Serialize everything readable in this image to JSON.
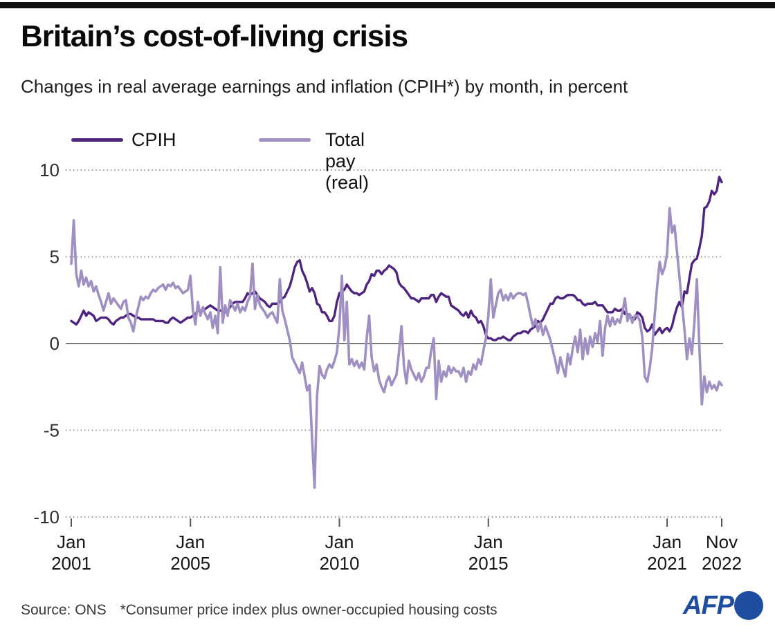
{
  "header": {
    "title": "Britain’s cost-of-living crisis",
    "subtitle": "Changes in real average earnings and inflation (CPIH*) by month, in percent"
  },
  "legend": {
    "items": [
      {
        "label": "CPIH",
        "color": "#4e2480"
      },
      {
        "label": "Total pay (real)",
        "color": "#a08fc2"
      }
    ]
  },
  "footer": {
    "source": "Source: ONS",
    "note": "*Consumer price index plus owner-occupied housing costs",
    "logo": "AFP",
    "logo_color": "#1f4ea1"
  },
  "chart_data": {
    "type": "line",
    "title": "Changes in real average earnings and inflation (CPIH) by month, in percent",
    "x_start": "2001-01",
    "x_end": "2022-11",
    "frequency": "monthly",
    "ylim": [
      -10,
      10
    ],
    "yticks": [
      10,
      5,
      0,
      -5,
      -10
    ],
    "grid": "horizontal-dotted, solid zero line",
    "legend_position": "top",
    "xticks": [
      {
        "month": "Jan",
        "year": "2001",
        "index": 0
      },
      {
        "month": "Jan",
        "year": "2005",
        "index": 48
      },
      {
        "month": "Jan",
        "year": "2010",
        "index": 108
      },
      {
        "month": "Jan",
        "year": "2015",
        "index": 168
      },
      {
        "month": "Jan",
        "year": "2021",
        "index": 240
      },
      {
        "month": "Nov",
        "year": "2022",
        "index": 262
      }
    ],
    "series": [
      {
        "name": "CPIH",
        "color": "#4e2480",
        "values": [
          1.3,
          1.2,
          1.1,
          1.3,
          1.6,
          1.9,
          1.6,
          1.8,
          1.7,
          1.6,
          1.3,
          1.4,
          1.5,
          1.5,
          1.5,
          1.4,
          1.2,
          1.1,
          1.3,
          1.4,
          1.5,
          1.5,
          1.6,
          1.7,
          1.7,
          1.6,
          1.5,
          1.5,
          1.4,
          1.4,
          1.4,
          1.4,
          1.4,
          1.4,
          1.3,
          1.3,
          1.3,
          1.3,
          1.2,
          1.2,
          1.4,
          1.5,
          1.4,
          1.3,
          1.2,
          1.3,
          1.4,
          1.5,
          1.5,
          1.6,
          1.7,
          1.9,
          1.9,
          1.9,
          2.0,
          2.1,
          2.2,
          2.1,
          2.0,
          1.9,
          1.9,
          1.9,
          1.8,
          1.9,
          2.1,
          2.3,
          2.4,
          2.4,
          2.4,
          2.4,
          2.6,
          2.9,
          2.8,
          2.9,
          3.0,
          2.8,
          2.6,
          2.5,
          2.4,
          2.2,
          2.1,
          2.3,
          2.3,
          2.3,
          2.4,
          2.6,
          2.7,
          3.0,
          3.3,
          3.8,
          4.4,
          4.7,
          4.8,
          4.2,
          3.9,
          3.5,
          3.0,
          3.2,
          2.9,
          2.3,
          2.2,
          1.8,
          1.8,
          1.6,
          1.3,
          1.3,
          1.6,
          2.4,
          2.9,
          3.0,
          3.1,
          3.4,
          3.2,
          3.0,
          2.9,
          2.9,
          2.8,
          2.9,
          3.0,
          3.4,
          3.6,
          4.0,
          3.9,
          4.2,
          4.2,
          4.0,
          4.2,
          4.3,
          4.5,
          4.4,
          4.3,
          4.1,
          3.5,
          3.3,
          3.2,
          3.0,
          2.8,
          2.6,
          2.6,
          2.5,
          2.4,
          2.6,
          2.6,
          2.6,
          2.6,
          2.8,
          2.8,
          2.4,
          2.7,
          2.9,
          2.8,
          2.7,
          2.7,
          2.2,
          2.1,
          2.0,
          1.9,
          1.7,
          1.6,
          1.8,
          1.5,
          1.9,
          1.6,
          1.5,
          1.2,
          1.3,
          1.0,
          0.5,
          0.3,
          0.3,
          0.2,
          0.2,
          0.3,
          0.3,
          0.4,
          0.3,
          0.2,
          0.2,
          0.4,
          0.5,
          0.6,
          0.6,
          0.7,
          0.7,
          0.6,
          0.8,
          0.9,
          1.0,
          1.3,
          1.2,
          1.4,
          1.7,
          2.0,
          2.3,
          2.3,
          2.6,
          2.7,
          2.6,
          2.6,
          2.7,
          2.8,
          2.8,
          2.8,
          2.7,
          2.5,
          2.5,
          2.3,
          2.2,
          2.3,
          2.3,
          2.3,
          2.4,
          2.2,
          2.2,
          2.2,
          2.0,
          1.8,
          1.8,
          1.8,
          2.0,
          1.9,
          1.9,
          2.0,
          1.7,
          1.7,
          1.5,
          1.5,
          1.4,
          1.8,
          1.7,
          1.5,
          0.9,
          0.7,
          0.8,
          1.1,
          0.5,
          0.7,
          0.9,
          0.6,
          0.8,
          0.9,
          0.7,
          1.0,
          1.6,
          2.1,
          2.4,
          2.1,
          3.0,
          2.9,
          3.8,
          4.6,
          4.8,
          4.9,
          5.5,
          6.2,
          7.8,
          7.9,
          8.2,
          8.8,
          8.6,
          8.8,
          9.6,
          9.3
        ]
      },
      {
        "name": "Total pay (real)",
        "color": "#a08fc2",
        "values": [
          4.6,
          7.1,
          4.0,
          3.3,
          4.2,
          3.4,
          3.8,
          3.3,
          3.6,
          3.0,
          3.3,
          2.8,
          2.4,
          1.9,
          2.4,
          2.9,
          2.3,
          2.6,
          2.4,
          2.2,
          2.0,
          2.4,
          2.5,
          1.5,
          1.2,
          0.7,
          1.5,
          2.1,
          2.7,
          2.5,
          2.7,
          2.6,
          2.9,
          3.1,
          3.0,
          3.2,
          3.3,
          3.4,
          3.1,
          3.4,
          3.3,
          3.5,
          3.2,
          3.3,
          3.1,
          2.9,
          3.0,
          3.1,
          3.9,
          1.9,
          1.1,
          2.4,
          1.6,
          2.1,
          1.7,
          1.4,
          1.8,
          0.9,
          1.6,
          0.6,
          4.4,
          1.2,
          2.2,
          1.6,
          2.5,
          2.2,
          1.9,
          2.3,
          1.8,
          2.1,
          1.9,
          2.4,
          2.7,
          4.6,
          2.0,
          2.8,
          2.2,
          2.0,
          1.8,
          1.5,
          1.7,
          1.8,
          1.5,
          1.2,
          3.7,
          1.9,
          1.4,
          0.8,
          0.2,
          -0.8,
          -1.1,
          -1.4,
          -1.7,
          -1.1,
          -1.9,
          -2.7,
          -2.4,
          -5.5,
          -8.3,
          -3.0,
          -1.3,
          -1.8,
          -2.0,
          -1.5,
          -1.2,
          -1.4,
          -1.0,
          -0.5,
          1.0,
          3.9,
          0.2,
          2.4,
          -1.2,
          -0.9,
          -1.3,
          -1.0,
          -1.4,
          -1.1,
          -1.5,
          0.3,
          1.6,
          -0.8,
          -1.6,
          -1.2,
          -2.1,
          -2.5,
          -2.8,
          -2.2,
          -1.9,
          -2.4,
          -2.1,
          -1.8,
          -0.5,
          1.0,
          -1.3,
          -2.3,
          -1.0,
          -1.5,
          -1.8,
          -2.1,
          -1.7,
          -2.2,
          -1.9,
          -1.4,
          -1.4,
          -0.4,
          0.3,
          -3.2,
          -1.0,
          -2.2,
          -1.6,
          -1.9,
          -1.3,
          -1.7,
          -1.4,
          -1.6,
          -1.6,
          -1.9,
          -1.4,
          -2.2,
          -1.6,
          -1.8,
          -1.2,
          -1.5,
          -0.9,
          -1.2,
          -0.4,
          0.3,
          1.6,
          3.7,
          1.5,
          2.2,
          2.9,
          3.1,
          2.5,
          2.8,
          2.5,
          2.9,
          2.6,
          2.8,
          2.9,
          2.9,
          2.8,
          2.9,
          2.3,
          1.6,
          1.0,
          1.4,
          0.7,
          1.2,
          0.5,
          1.0,
          0.6,
          0.2,
          -0.4,
          -1.0,
          -1.7,
          -0.8,
          -1.4,
          -1.9,
          -0.6,
          -1.2,
          -0.3,
          0.4,
          -0.5,
          0.8,
          -0.9,
          0.3,
          -0.6,
          0.4,
          -0.2,
          0.6,
          0.1,
          1.3,
          -0.7,
          0.9,
          1.6,
          1.0,
          1.5,
          1.1,
          1.4,
          1.2,
          1.8,
          2.6,
          1.3,
          1.7,
          1.2,
          1.6,
          1.6,
          1.3,
          0.4,
          -1.9,
          -2.2,
          -1.4,
          -0.3,
          1.6,
          3.3,
          4.7,
          4.0,
          4.4,
          5.2,
          7.8,
          6.4,
          6.8,
          5.3,
          3.8,
          2.3,
          0.8,
          -0.9,
          0.3,
          -0.6,
          1.2,
          3.7,
          -0.2,
          -3.5,
          -1.9,
          -2.8,
          -2.2,
          -2.6,
          -2.4,
          -2.7,
          -2.2,
          -2.4
        ]
      }
    ]
  }
}
